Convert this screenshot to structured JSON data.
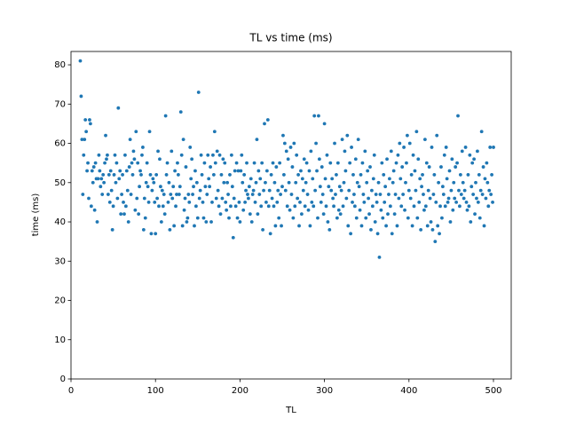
{
  "chart_data": {
    "type": "scatter",
    "title": "TL vs time (ms)",
    "x_label": "TL",
    "y_label": "time (ms)",
    "color": "#1f77b4",
    "xlim": [
      0,
      521
    ],
    "ylim": [
      0,
      83.4
    ],
    "xticks": [
      0,
      100,
      200,
      300,
      400,
      500
    ],
    "yticks": [
      0,
      10,
      20,
      30,
      40,
      50,
      60,
      70,
      80
    ],
    "x": [
      11,
      12,
      13,
      14,
      15,
      16,
      17,
      18,
      19,
      20,
      21,
      22,
      23,
      24,
      25,
      26,
      27,
      28,
      29,
      30,
      31,
      32,
      33,
      34,
      35,
      36,
      37,
      38,
      39,
      40,
      41,
      42,
      43,
      44,
      45,
      46,
      47,
      48,
      49,
      50,
      51,
      52,
      53,
      54,
      55,
      56,
      57,
      58,
      59,
      60,
      61,
      62,
      63,
      64,
      65,
      66,
      67,
      68,
      69,
      70,
      71,
      72,
      73,
      74,
      75,
      76,
      77,
      78,
      79,
      80,
      81,
      82,
      83,
      84,
      85,
      86,
      87,
      88,
      89,
      90,
      91,
      92,
      93,
      94,
      95,
      96,
      97,
      98,
      99,
      100,
      101,
      102,
      103,
      104,
      105,
      106,
      107,
      108,
      109,
      110,
      111,
      112,
      113,
      114,
      115,
      116,
      117,
      118,
      119,
      120,
      121,
      122,
      123,
      124,
      125,
      126,
      127,
      128,
      129,
      130,
      131,
      132,
      133,
      134,
      135,
      136,
      137,
      138,
      139,
      140,
      141,
      142,
      143,
      144,
      145,
      146,
      147,
      148,
      149,
      150,
      151,
      152,
      153,
      154,
      155,
      156,
      157,
      158,
      159,
      160,
      161,
      162,
      163,
      164,
      165,
      166,
      167,
      168,
      169,
      170,
      171,
      172,
      173,
      174,
      175,
      176,
      177,
      178,
      179,
      180,
      181,
      182,
      183,
      184,
      185,
      186,
      187,
      188,
      189,
      190,
      191,
      192,
      193,
      194,
      195,
      196,
      197,
      198,
      199,
      200,
      201,
      202,
      203,
      204,
      205,
      206,
      207,
      208,
      209,
      210,
      211,
      212,
      213,
      214,
      215,
      216,
      217,
      218,
      219,
      220,
      221,
      222,
      223,
      224,
      225,
      226,
      227,
      228,
      229,
      230,
      231,
      232,
      233,
      234,
      235,
      236,
      237,
      238,
      239,
      240,
      241,
      242,
      243,
      244,
      245,
      246,
      247,
      248,
      249,
      250,
      251,
      252,
      253,
      254,
      255,
      256,
      257,
      258,
      259,
      260,
      261,
      262,
      263,
      264,
      265,
      266,
      267,
      268,
      269,
      270,
      271,
      272,
      273,
      274,
      275,
      276,
      277,
      278,
      279,
      280,
      281,
      282,
      283,
      284,
      285,
      286,
      287,
      288,
      289,
      290,
      291,
      292,
      293,
      294,
      295,
      296,
      297,
      298,
      299,
      300,
      301,
      302,
      303,
      304,
      305,
      306,
      307,
      308,
      309,
      310,
      311,
      312,
      313,
      314,
      315,
      316,
      317,
      318,
      319,
      320,
      321,
      322,
      323,
      324,
      325,
      326,
      327,
      328,
      329,
      330,
      331,
      332,
      333,
      334,
      335,
      336,
      337,
      338,
      339,
      340,
      341,
      342,
      343,
      344,
      345,
      346,
      347,
      348,
      349,
      350,
      351,
      352,
      353,
      354,
      355,
      356,
      357,
      358,
      359,
      360,
      361,
      362,
      363,
      364,
      365,
      366,
      367,
      368,
      369,
      370,
      371,
      372,
      373,
      374,
      375,
      376,
      377,
      378,
      379,
      380,
      381,
      382,
      383,
      384,
      385,
      386,
      387,
      388,
      389,
      390,
      391,
      392,
      393,
      394,
      395,
      396,
      397,
      398,
      399,
      400,
      401,
      402,
      403,
      404,
      405,
      406,
      407,
      408,
      409,
      410,
      411,
      412,
      413,
      414,
      415,
      416,
      417,
      418,
      419,
      420,
      421,
      422,
      423,
      424,
      425,
      426,
      427,
      428,
      429,
      430,
      431,
      432,
      433,
      434,
      435,
      436,
      437,
      438,
      439,
      440,
      441,
      442,
      443,
      444,
      445,
      446,
      447,
      448,
      449,
      450,
      451,
      452,
      453,
      454,
      455,
      456,
      457,
      458,
      459,
      460,
      461,
      462,
      463,
      464,
      465,
      466,
      467,
      468,
      469,
      470,
      471,
      472,
      473,
      474,
      475,
      476,
      477,
      478,
      479,
      480,
      481,
      482,
      483,
      484,
      485,
      486,
      487,
      488,
      489,
      490,
      491,
      492,
      493,
      494,
      495,
      496,
      497,
      498,
      499,
      500
    ],
    "values": [
      81,
      72,
      61,
      47,
      57,
      61,
      66,
      63,
      53,
      55,
      46,
      66,
      65,
      44,
      53,
      50,
      54,
      43,
      55,
      51,
      40,
      51,
      57,
      53,
      49,
      51,
      47,
      52,
      50,
      55,
      62,
      56,
      57,
      47,
      52,
      45,
      53,
      48,
      38,
      44,
      52,
      57,
      50,
      55,
      46,
      69,
      51,
      53,
      42,
      47,
      52,
      45,
      42,
      57,
      44,
      53,
      48,
      40,
      54,
      61,
      47,
      55,
      52,
      58,
      56,
      43,
      63,
      46,
      55,
      42,
      49,
      53,
      52,
      57,
      59,
      38,
      46,
      41,
      50,
      55,
      49,
      45,
      63,
      52,
      37,
      48,
      51,
      50,
      45,
      37,
      52,
      46,
      58,
      44,
      56,
      49,
      40,
      48,
      44,
      47,
      42,
      67,
      52,
      55,
      45,
      50,
      38,
      47,
      58,
      46,
      49,
      39,
      53,
      44,
      47,
      55,
      52,
      47,
      49,
      68,
      57,
      39,
      61,
      43,
      46,
      54,
      40,
      41,
      47,
      45,
      59,
      51,
      56,
      47,
      49,
      39,
      53,
      44,
      50,
      41,
      73,
      46,
      48,
      57,
      52,
      45,
      41,
      55,
      49,
      40,
      47,
      57,
      51,
      49,
      54,
      40,
      45,
      57,
      52,
      63,
      55,
      46,
      58,
      48,
      44,
      57,
      42,
      52,
      46,
      56,
      50,
      55,
      45,
      43,
      50,
      47,
      41,
      52,
      44,
      57,
      49,
      36,
      46,
      53,
      44,
      55,
      41,
      53,
      45,
      40,
      53,
      57,
      50,
      43,
      52,
      45,
      48,
      55,
      47,
      46,
      49,
      42,
      51,
      40,
      47,
      48,
      55,
      45,
      50,
      61,
      42,
      53,
      47,
      51,
      44,
      55,
      38,
      48,
      65,
      50,
      45,
      53,
      66,
      44,
      48,
      37,
      52,
      46,
      55,
      44,
      50,
      39,
      54,
      45,
      48,
      41,
      55,
      47,
      39,
      49,
      62,
      52,
      60,
      48,
      58,
      44,
      56,
      50,
      43,
      59,
      47,
      54,
      41,
      60,
      44,
      50,
      57,
      46,
      52,
      39,
      45,
      53,
      42,
      51,
      48,
      56,
      44,
      50,
      55,
      47,
      43,
      53,
      39,
      58,
      45,
      51,
      44,
      67,
      48,
      60,
      53,
      41,
      67,
      56,
      49,
      45,
      54,
      47,
      42,
      65,
      51,
      44,
      57,
      40,
      49,
      38,
      55,
      48,
      51,
      46,
      44,
      60,
      47,
      52,
      41,
      55,
      43,
      49,
      42,
      48,
      61,
      44,
      50,
      58,
      53,
      46,
      62,
      39,
      48,
      55,
      37,
      59,
      45,
      52,
      47,
      44,
      56,
      41,
      50,
      61,
      49,
      43,
      52,
      39,
      55,
      47,
      45,
      58,
      41,
      50,
      53,
      46,
      42,
      54,
      38,
      48,
      44,
      51,
      57,
      40,
      47,
      45,
      37,
      50,
      31,
      47,
      43,
      55,
      41,
      52,
      45,
      49,
      39,
      56,
      42,
      47,
      51,
      44,
      58,
      37,
      50,
      53,
      42,
      47,
      55,
      39,
      57,
      46,
      60,
      51,
      44,
      54,
      47,
      59,
      43,
      50,
      55,
      62,
      41,
      48,
      60,
      46,
      52,
      39,
      57,
      44,
      53,
      48,
      63,
      41,
      56,
      45,
      51,
      38,
      49,
      52,
      47,
      43,
      61,
      44,
      55,
      39,
      48,
      54,
      46,
      40,
      59,
      38,
      47,
      52,
      35,
      45,
      62,
      39,
      50,
      37,
      44,
      54,
      41,
      49,
      47,
      57,
      44,
      59,
      51,
      45,
      46,
      53,
      40,
      48,
      56,
      43,
      50,
      46,
      54,
      45,
      55,
      67,
      48,
      44,
      52,
      47,
      58,
      50,
      46,
      48,
      59,
      45,
      43,
      52,
      44,
      57,
      40,
      49,
      55,
      47,
      56,
      42,
      50,
      46,
      58,
      45,
      52,
      41,
      48,
      63,
      47,
      54,
      39,
      51,
      46,
      55,
      50,
      44,
      48,
      59,
      47,
      52,
      45,
      59
    ]
  }
}
